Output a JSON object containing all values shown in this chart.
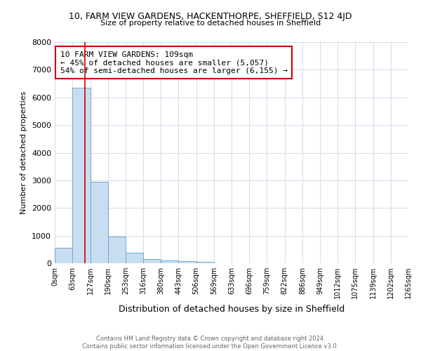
{
  "title_main": "10, FARM VIEW GARDENS, HACKENTHORPE, SHEFFIELD, S12 4JD",
  "title_sub": "Size of property relative to detached houses in Sheffield",
  "xlabel": "Distribution of detached houses by size in Sheffield",
  "ylabel": "Number of detached properties",
  "bar_edges": [
    0,
    63,
    127,
    190,
    253,
    316,
    380,
    443,
    506,
    569,
    633,
    696,
    759,
    822,
    886,
    949,
    1012,
    1075,
    1139,
    1202,
    1265
  ],
  "bar_values": [
    560,
    6350,
    2950,
    960,
    370,
    155,
    100,
    65,
    55,
    10,
    5,
    3,
    2,
    2,
    1,
    1,
    0,
    0,
    0,
    0
  ],
  "bar_color": "#c9ddf0",
  "bar_edge_color": "#6aaad4",
  "property_line_x": 109,
  "property_line_color": "#cc0000",
  "annotation_text": "10 FARM VIEW GARDENS: 109sqm\n← 45% of detached houses are smaller (5,057)\n54% of semi-detached houses are larger (6,155) →",
  "annotation_box_color": "#ffffff",
  "annotation_box_edge": "#cc0000",
  "ylim": [
    0,
    8000
  ],
  "yticks": [
    0,
    1000,
    2000,
    3000,
    4000,
    5000,
    6000,
    7000,
    8000
  ],
  "xtick_labels": [
    "0sqm",
    "63sqm",
    "127sqm",
    "190sqm",
    "253sqm",
    "316sqm",
    "380sqm",
    "443sqm",
    "506sqm",
    "569sqm",
    "633sqm",
    "696sqm",
    "759sqm",
    "822sqm",
    "886sqm",
    "949sqm",
    "1012sqm",
    "1075sqm",
    "1139sqm",
    "1202sqm",
    "1265sqm"
  ],
  "footer_text": "Contains HM Land Registry data © Crown copyright and database right 2024.\nContains public sector information licensed under the Open Government Licence v3.0.",
  "background_color": "#ffffff",
  "grid_color": "#ccd6e8"
}
